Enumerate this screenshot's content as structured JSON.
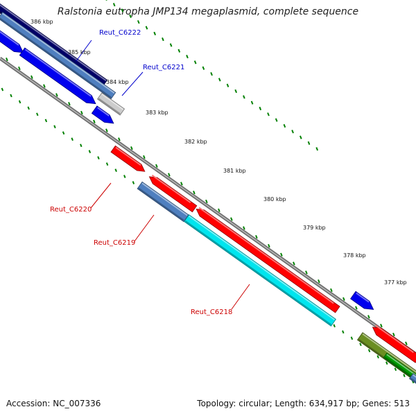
{
  "title": "Ralstonia eutropha JMP134 megaplasmid, complete sequence",
  "footer": {
    "accession": "Accession: NC_007336",
    "summary": "Topology: circular; Length: 634,917 bp; Genes: 513"
  },
  "ticks": [
    {
      "label": "386 kbp"
    },
    {
      "label": "385 kbp"
    },
    {
      "label": "384 kbp"
    },
    {
      "label": "383 kbp"
    },
    {
      "label": "382 kbp"
    },
    {
      "label": "381 kbp"
    },
    {
      "label": "380 kbp"
    },
    {
      "label": "379 kbp"
    },
    {
      "label": "378 kbp"
    },
    {
      "label": "377 kbp"
    }
  ],
  "gene_labels": [
    {
      "text": "Reut_C6222",
      "color": "#0000cc"
    },
    {
      "text": "Reut_C6221",
      "color": "#0000cc"
    },
    {
      "text": "Reut_C6220",
      "color": "#cc0000"
    },
    {
      "text": "Reut_C6219",
      "color": "#cc0000"
    },
    {
      "text": "Reut_C6218",
      "color": "#cc0000"
    }
  ],
  "colors": {
    "forward_cds": "#0000ee",
    "reverse_cds": "#ff0000",
    "cog_blue": "#4f7fbf",
    "cog_navy": "#000066",
    "cog_cyan": "#00e5ee",
    "cog_grey": "#cccccc",
    "cog_olive": "#6b8e23",
    "cog_green": "#009900",
    "backbone": "#808080",
    "ruler": "#008000"
  }
}
